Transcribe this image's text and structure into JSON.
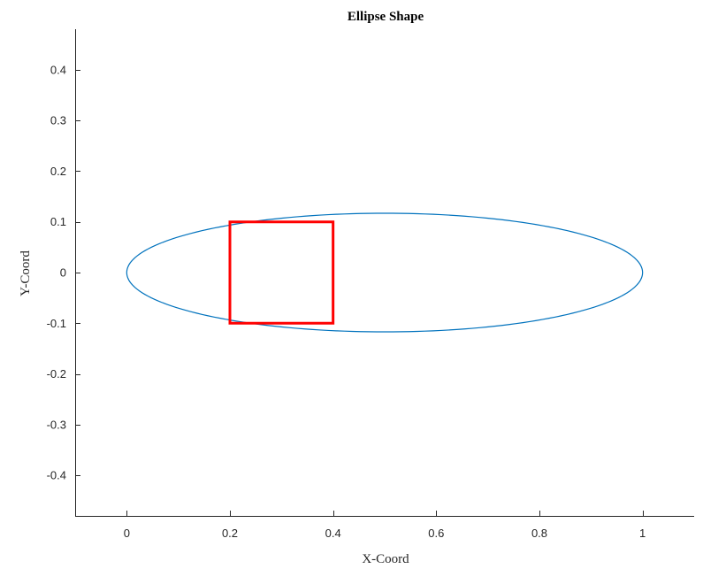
{
  "chart_data": {
    "type": "line",
    "title": "Ellipse Shape",
    "xlabel": "X-Coord",
    "ylabel": "Y-Coord",
    "xlim": [
      -0.1,
      1.1
    ],
    "ylim": [
      -0.48,
      0.48
    ],
    "x_ticks": [
      0,
      0.2,
      0.4,
      0.6,
      0.8,
      1
    ],
    "x_tick_labels": [
      "0",
      "0.2",
      "0.4",
      "0.6",
      "0.8",
      "1"
    ],
    "y_ticks": [
      0.4,
      0.3,
      0.2,
      0.1,
      0,
      -0.1,
      -0.2,
      -0.3,
      -0.4
    ],
    "y_tick_labels": [
      "0.4",
      "0.3",
      "0.2",
      "0.1",
      "0",
      "-0.1",
      "-0.2",
      "-0.3",
      "-0.4"
    ],
    "grid": false,
    "series": [
      {
        "shape": "ellipse",
        "center": [
          0.5,
          0
        ],
        "semi_axes": [
          0.5,
          0.117
        ],
        "color": "#0072BD"
      },
      {
        "shape": "rectangle",
        "corners": [
          [
            0.2,
            -0.1
          ],
          [
            0.4,
            -0.1
          ],
          [
            0.4,
            0.1
          ],
          [
            0.2,
            0.1
          ]
        ],
        "color": "#FF0000"
      }
    ]
  }
}
